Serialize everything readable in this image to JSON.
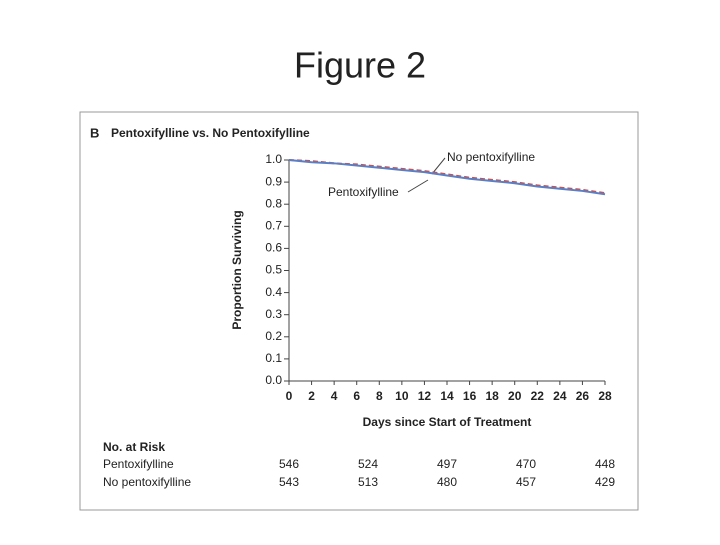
{
  "slide_title": "Figure 2",
  "chart_data": {
    "type": "line",
    "panel": "B",
    "title": "Pentoxifylline vs. No Pentoxifylline",
    "y_label": "Proportion Surviving",
    "x_label": "Days since Start of Treatment",
    "x": [
      0,
      2,
      4,
      6,
      8,
      10,
      12,
      14,
      16,
      18,
      20,
      22,
      24,
      26,
      28
    ],
    "series": [
      {
        "name": "Pentoxifylline",
        "color": "#5b7fc4",
        "dashed": false,
        "values": [
          1.0,
          0.99,
          0.985,
          0.975,
          0.965,
          0.955,
          0.945,
          0.93,
          0.915,
          0.905,
          0.895,
          0.88,
          0.87,
          0.86,
          0.845
        ],
        "at_risk": [
          546,
          524,
          497,
          470,
          448
        ]
      },
      {
        "name": "No pentoxifylline",
        "color": "#c9504e",
        "dashed": true,
        "values": [
          1.0,
          0.995,
          0.985,
          0.98,
          0.97,
          0.96,
          0.95,
          0.935,
          0.92,
          0.91,
          0.9,
          0.885,
          0.875,
          0.865,
          0.85
        ],
        "at_risk": [
          543,
          513,
          480,
          457,
          429
        ]
      }
    ],
    "risk_title": "No. at Risk",
    "xlim": [
      0,
      28
    ],
    "xticks": [
      0,
      2,
      4,
      6,
      8,
      10,
      12,
      14,
      16,
      18,
      20,
      22,
      24,
      26,
      28
    ],
    "ylim": [
      0,
      1
    ],
    "yticks": [
      {
        "value": 0,
        "label": "0.0"
      },
      0.1,
      0.2,
      0.3,
      0.4,
      0.5,
      0.6,
      0.7,
      0.8,
      0.9,
      {
        "value": 1,
        "label": "1.0"
      }
    ]
  }
}
